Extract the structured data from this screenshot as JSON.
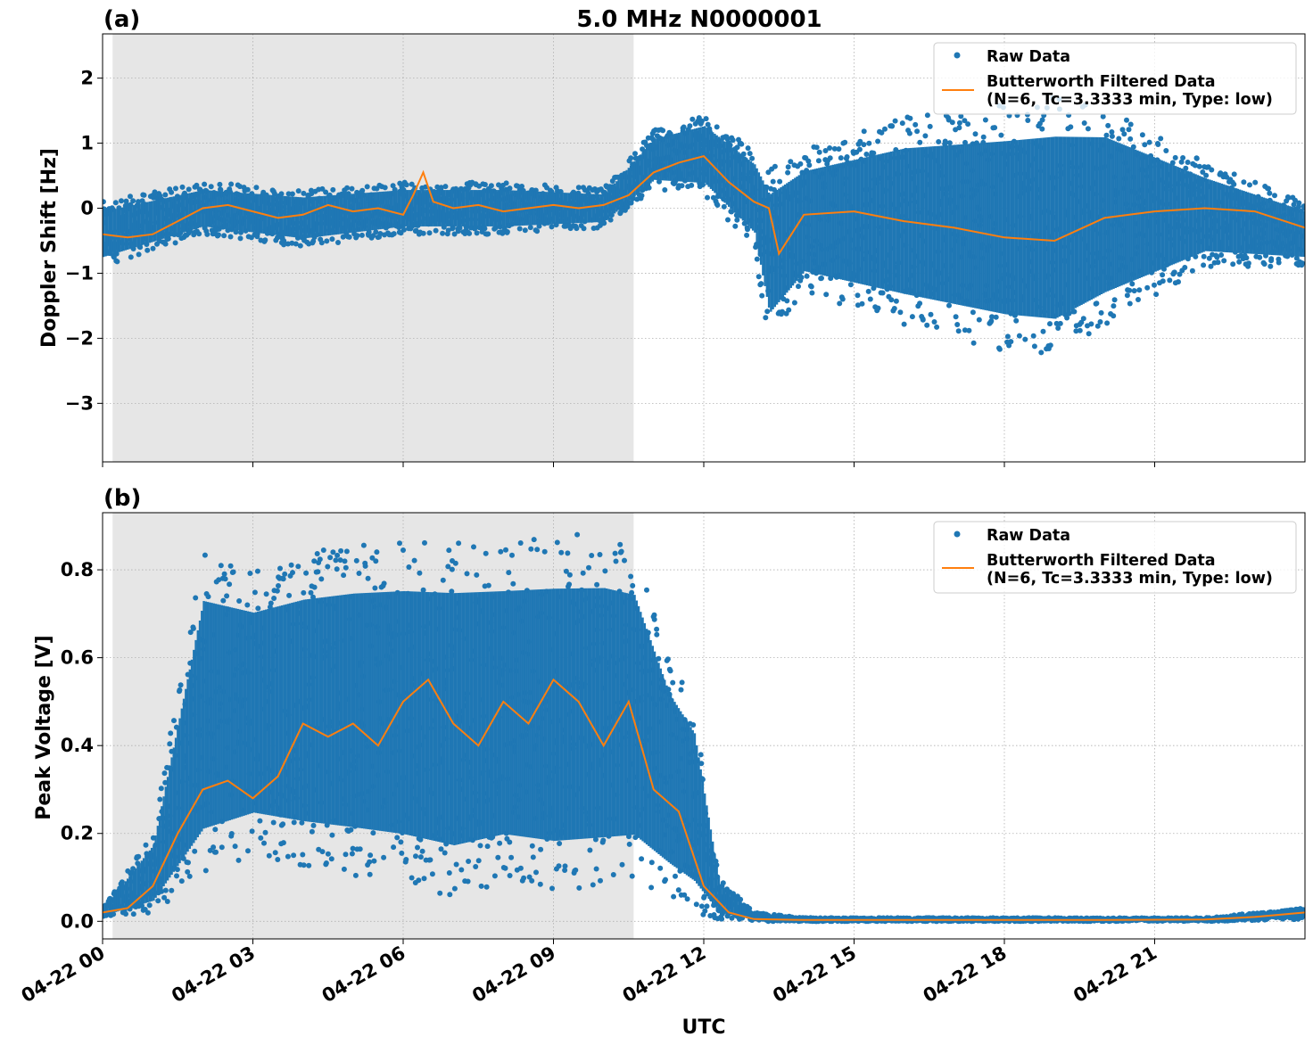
{
  "figure": {
    "title": "5.0 MHz N0000001",
    "xlabel": "UTC",
    "x_tick_labels": [
      "04-22 00",
      "04-22 03",
      "04-22 06",
      "04-22 09",
      "04-22 12",
      "04-22 15",
      "04-22 18",
      "04-22 21"
    ]
  },
  "colors": {
    "raw": "#1f77b4",
    "filtered": "#ff7f0e",
    "shade": "#e6e6e6"
  },
  "chart_data": [
    {
      "panel": "(a)",
      "type": "scatter",
      "x_unit": "hours UTC on 04-22",
      "xlim": [
        0,
        24
      ],
      "ylim": [
        -3.9,
        2.68
      ],
      "yticks": [
        2,
        1,
        0,
        -1,
        -2,
        -3
      ],
      "ytick_labels": [
        "2",
        "1",
        "0",
        "−1",
        "−2",
        "−3"
      ],
      "ylabel": "Doppler Shift [Hz]",
      "grid": true,
      "legend_position": "top-right",
      "legend": [
        "Raw Data",
        "Butterworth Filtered Data",
        "(N=6, Tc=3.3333 min, Type: low)"
      ],
      "shaded_interval_hours": [
        0.2,
        10.6
      ],
      "series": [
        {
          "name": "Butterworth Filtered Data",
          "x": [
            0,
            0.5,
            1,
            1.5,
            2,
            2.5,
            3,
            3.5,
            4,
            4.5,
            5,
            5.5,
            6,
            6.2,
            6.4,
            6.6,
            7,
            7.5,
            8,
            8.5,
            9,
            9.5,
            10,
            10.5,
            11,
            11.5,
            12,
            12.5,
            13,
            13.3,
            13.5,
            14,
            15,
            16,
            17,
            18,
            19,
            20,
            21,
            22,
            23,
            24
          ],
          "y": [
            -0.4,
            -0.45,
            -0.4,
            -0.2,
            0.0,
            0.05,
            -0.05,
            -0.15,
            -0.1,
            0.05,
            -0.05,
            0.0,
            -0.1,
            0.2,
            0.55,
            0.1,
            0.0,
            0.05,
            -0.05,
            0.0,
            0.05,
            0.0,
            0.05,
            0.2,
            0.55,
            0.7,
            0.8,
            0.4,
            0.1,
            0.0,
            -0.7,
            -0.1,
            -0.05,
            -0.2,
            -0.3,
            -0.45,
            -0.5,
            -0.15,
            -0.05,
            0.0,
            -0.05,
            -0.3
          ]
        },
        {
          "name": "Raw Data",
          "envelope_x": [
            0,
            2,
            4,
            6,
            8,
            10,
            11,
            12,
            13,
            13.3,
            14,
            16,
            18,
            19,
            20,
            22,
            24
          ],
          "envelope_lower": [
            -0.9,
            -0.4,
            -0.6,
            -0.4,
            -0.4,
            -0.3,
            0.3,
            0.2,
            -0.6,
            -2.0,
            -1.3,
            -1.8,
            -2.2,
            -2.3,
            -1.8,
            -0.9,
            -0.9
          ],
          "envelope_upper": [
            0.1,
            0.4,
            0.3,
            0.4,
            0.4,
            0.3,
            1.2,
            1.45,
            0.9,
            0.6,
            0.9,
            1.4,
            1.6,
            1.7,
            1.6,
            0.7,
            0.1
          ]
        }
      ]
    },
    {
      "panel": "(b)",
      "type": "scatter",
      "x_unit": "hours UTC on 04-22",
      "xlim": [
        0,
        24
      ],
      "ylim": [
        -0.04,
        0.93
      ],
      "yticks": [
        0.0,
        0.2,
        0.4,
        0.6,
        0.8
      ],
      "ytick_labels": [
        "0.0",
        "0.2",
        "0.4",
        "0.6",
        "0.8"
      ],
      "ylabel": "Peak Voltage [V]",
      "grid": true,
      "legend_position": "top-right",
      "legend": [
        "Raw Data",
        "Butterworth Filtered Data",
        "(N=6, Tc=3.3333 min, Type: low)"
      ],
      "shaded_interval_hours": [
        0.2,
        10.6
      ],
      "series": [
        {
          "name": "Butterworth Filtered Data",
          "x": [
            0,
            0.5,
            1,
            1.5,
            2,
            2.5,
            3,
            3.5,
            4,
            4.5,
            5,
            5.5,
            6,
            6.5,
            7,
            7.5,
            8,
            8.5,
            9,
            9.5,
            10,
            10.5,
            11,
            11.5,
            12,
            12.5,
            13,
            14,
            16,
            18,
            20,
            22,
            23,
            24
          ],
          "y": [
            0.02,
            0.03,
            0.08,
            0.2,
            0.3,
            0.32,
            0.28,
            0.33,
            0.45,
            0.42,
            0.45,
            0.4,
            0.5,
            0.55,
            0.45,
            0.4,
            0.5,
            0.45,
            0.55,
            0.5,
            0.4,
            0.5,
            0.3,
            0.25,
            0.08,
            0.02,
            0.005,
            0.003,
            0.003,
            0.003,
            0.003,
            0.004,
            0.01,
            0.02
          ]
        },
        {
          "name": "Raw Data",
          "envelope_x": [
            0,
            1,
            2,
            3,
            4,
            5,
            6,
            7,
            8,
            9,
            10,
            10.6,
            11.3,
            11.8,
            12.3,
            13,
            14,
            22,
            24
          ],
          "envelope_lower": [
            0.01,
            0.02,
            0.1,
            0.15,
            0.12,
            0.1,
            0.08,
            0.05,
            0.08,
            0.06,
            0.07,
            0.08,
            0.05,
            0.02,
            0.005,
            0.0,
            0.0,
            0.0,
            0.005
          ],
          "envelope_upper": [
            0.03,
            0.2,
            0.84,
            0.8,
            0.84,
            0.86,
            0.87,
            0.87,
            0.87,
            0.88,
            0.88,
            0.86,
            0.6,
            0.5,
            0.1,
            0.02,
            0.008,
            0.008,
            0.03
          ]
        }
      ]
    }
  ]
}
